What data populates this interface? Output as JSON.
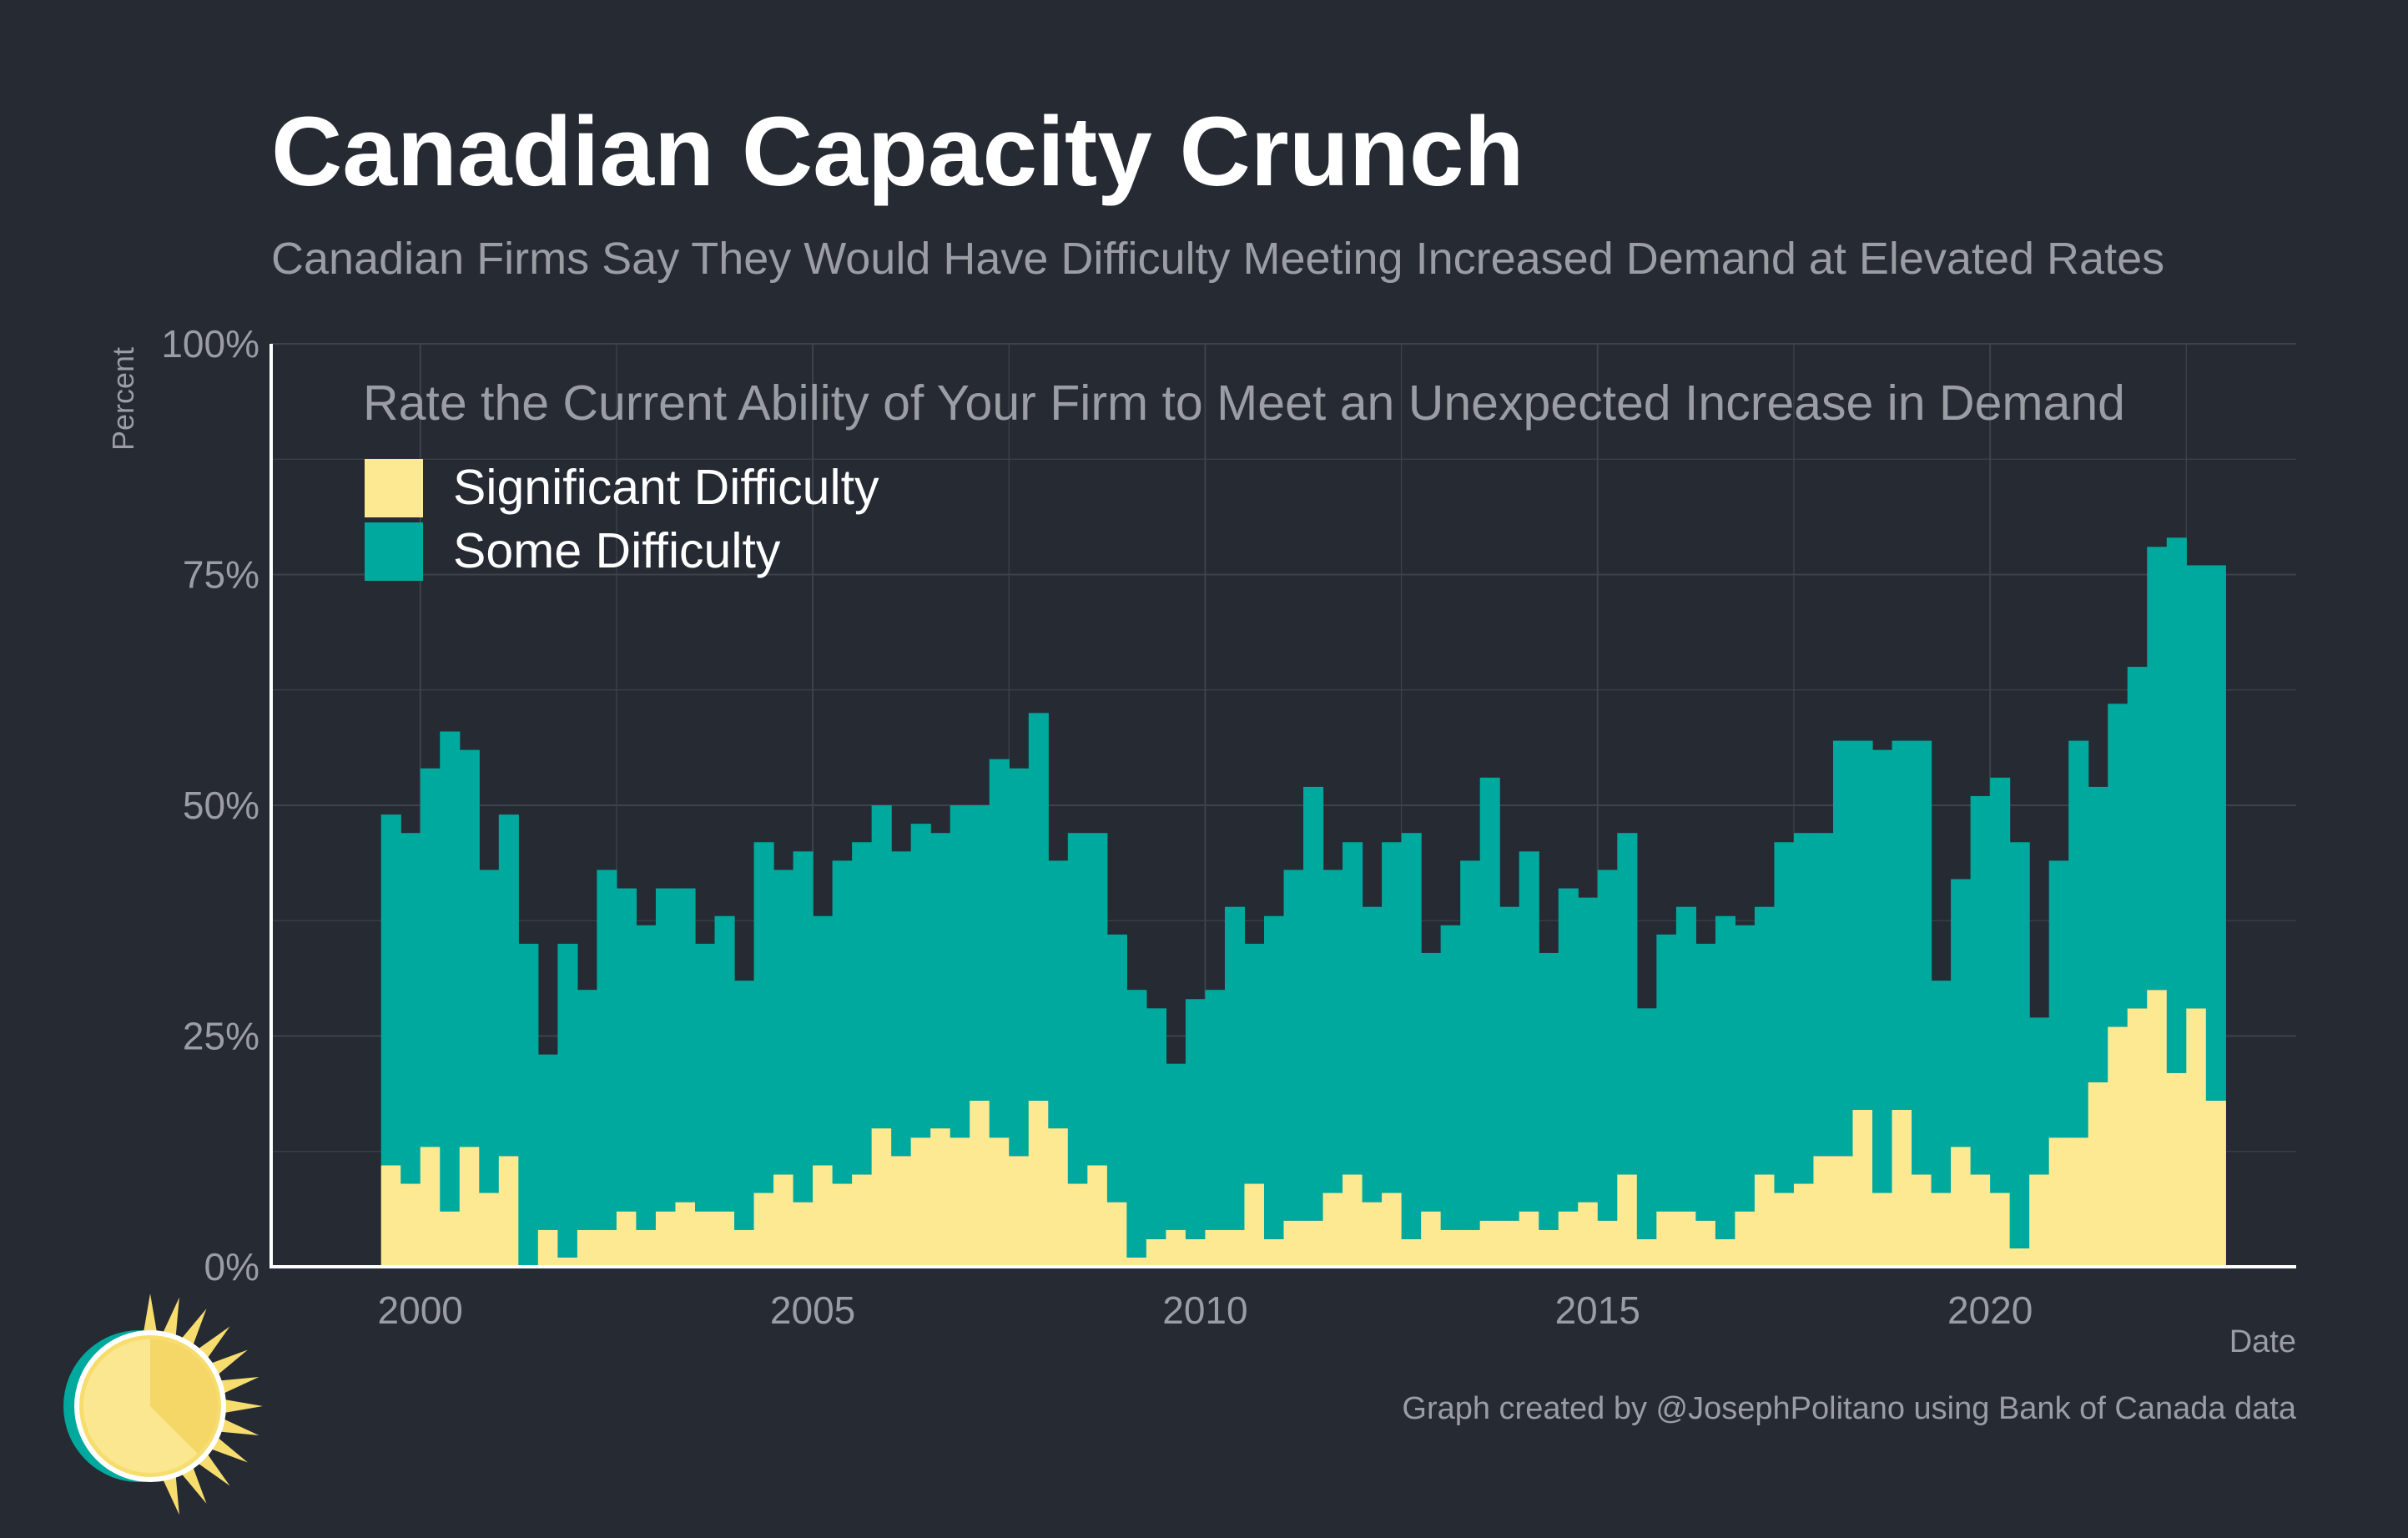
{
  "header": {
    "title": "Canadian Capacity Crunch",
    "subtitle": "Canadian Firms Say They Would Have Difficulty Meeting Increased Demand at Elevated Rates"
  },
  "caption": "Graph created by @JosephPolitano using Bank of Canada data",
  "logo": {
    "icon": "sun-logo-icon"
  },
  "colors": {
    "background": "#252a33",
    "grid": "#3d424b",
    "axis": "#ffffff",
    "some_difficulty": "#00a99d",
    "significant_difficulty": "#fde992"
  },
  "chart_data": {
    "type": "bar",
    "stacked": true,
    "frequency": "quarterly",
    "x_start": "1999 Q3",
    "xlabel": "Date",
    "ylabel": "Percent",
    "ylim": [
      0,
      100
    ],
    "xlim": [
      1998.1,
      2023.9
    ],
    "yticks": [
      0,
      25,
      50,
      75,
      100
    ],
    "ytick_labels": [
      "0%",
      "25%",
      "50%",
      "75%",
      "100%"
    ],
    "xticks": [
      2000,
      2005,
      2010,
      2015,
      2020
    ],
    "xtick_labels": [
      "2000",
      "2005",
      "2010",
      "2015",
      "2020"
    ],
    "grid": true,
    "legend": {
      "title": "Rate the Current Ability of Your Firm to Meet an Unexpected Increase in Demand",
      "position": "top-left",
      "entries": [
        "Significant Difficulty",
        "Some Difficulty"
      ]
    },
    "series": [
      {
        "name": "Significant Difficulty",
        "color": "#fde992",
        "values": [
          11,
          9,
          13,
          6,
          13,
          8,
          12,
          0,
          4,
          1,
          4,
          4,
          6,
          4,
          6,
          7,
          6,
          6,
          4,
          8,
          10,
          7,
          11,
          9,
          10,
          15,
          12,
          14,
          15,
          14,
          18,
          14,
          12,
          18,
          15,
          9,
          11,
          7,
          1,
          3,
          4,
          3,
          4,
          4,
          9,
          3,
          5,
          5,
          8,
          10,
          7,
          8,
          3,
          6,
          4,
          4,
          5,
          5,
          6,
          4,
          6,
          7,
          5,
          10,
          3,
          6,
          6,
          5,
          3,
          6,
          10,
          8,
          9,
          12,
          12,
          17,
          8,
          17,
          10,
          8,
          13,
          10,
          8,
          2,
          10,
          14,
          14,
          20,
          26,
          28,
          30,
          21,
          28,
          18
        ]
      },
      {
        "name": "Some Difficulty",
        "color": "#00a99d",
        "values": [
          38,
          38,
          41,
          52,
          43,
          35,
          37,
          35,
          19,
          34,
          26,
          39,
          35,
          33,
          35,
          34,
          29,
          32,
          27,
          38,
          33,
          38,
          27,
          35,
          36,
          35,
          33,
          34,
          32,
          36,
          32,
          41,
          42,
          42,
          29,
          38,
          36,
          29,
          29,
          25,
          18,
          26,
          26,
          35,
          26,
          35,
          38,
          47,
          35,
          36,
          32,
          38,
          44,
          28,
          33,
          40,
          48,
          34,
          39,
          30,
          35,
          33,
          38,
          37,
          25,
          30,
          33,
          30,
          35,
          31,
          29,
          38,
          38,
          35,
          45,
          40,
          48,
          40,
          47,
          23,
          29,
          41,
          45,
          44,
          17,
          30,
          43,
          32,
          35,
          37,
          48,
          58,
          48,
          58
        ]
      }
    ]
  }
}
